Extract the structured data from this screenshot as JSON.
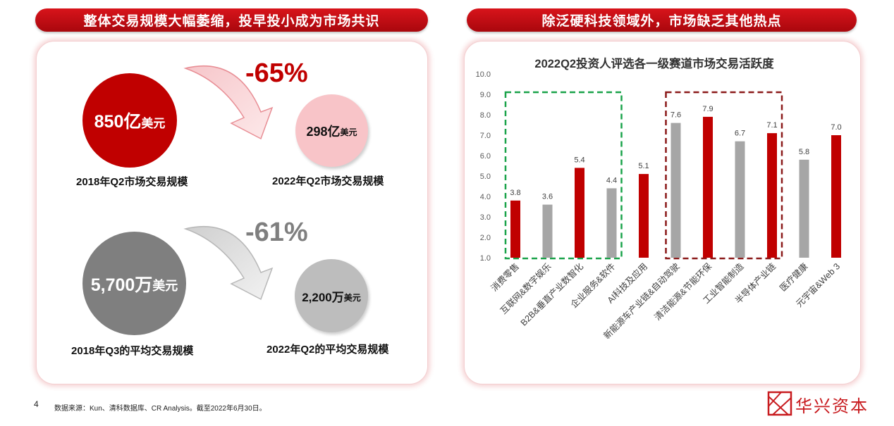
{
  "page_number": "4",
  "footer_source": "数据来源：Kun、清科数据库、CR Analysis。截至2022年6月30日。",
  "logo_text": "华兴资本",
  "colors": {
    "red": "#c00000",
    "grey": "#a6a6a6",
    "pink": "#f4b8bd",
    "dark_grey": "#7f7f7f",
    "light_grey": "#bfbfbf",
    "green_box": "#1aa34a",
    "red_box": "#8b1a1a"
  },
  "left_panel": {
    "banner": "整体交易规模大幅萎缩，投早投小成为市场共识",
    "top": {
      "change": "-65%",
      "big_value": "850亿",
      "big_unit": "美元",
      "big_caption": "2018年Q2市场交易规模",
      "small_value": "298亿",
      "small_unit": "美元",
      "small_caption": "2022年Q2市场交易规模"
    },
    "bottom": {
      "change": "-61%",
      "big_value": "5,700万",
      "big_unit": "美元",
      "big_caption": "2018年Q3的平均交易规模",
      "small_value": "2,200万",
      "small_unit": "美元",
      "small_caption": "2022年Q2的平均交易规模"
    }
  },
  "right_panel": {
    "banner": "除泛硬科技领域外，市场缺乏其他热点"
  },
  "chart_data": {
    "type": "bar",
    "title": "2022Q2投资人评选各一级赛道市场交易活跃度",
    "categories": [
      "消费零售",
      "互联网&数字娱乐",
      "B2B&垂直产业数智化",
      "企业服务&软件",
      "AI科技及应用",
      "新能源车产业链&自动驾驶",
      "清洁能源&节能环保",
      "工业智能制造",
      "半导体产业链",
      "医疗健康",
      "元宇宙&Web 3"
    ],
    "values": [
      3.8,
      3.6,
      5.4,
      4.4,
      5.1,
      7.6,
      7.9,
      6.7,
      7.1,
      5.8,
      7.0
    ],
    "value_labels": [
      "3.8",
      "3.6",
      "5.4",
      "4.4",
      "5.1",
      "7.6",
      "7.9",
      "6.7",
      "7.1",
      "5.8",
      "7.0"
    ],
    "bar_colors": [
      "#c00000",
      "#a6a6a6",
      "#c00000",
      "#a6a6a6",
      "#c00000",
      "#a6a6a6",
      "#c00000",
      "#a6a6a6",
      "#c00000",
      "#a6a6a6",
      "#c00000"
    ],
    "ylim": [
      1.0,
      10.0
    ],
    "yticks": [
      "1.0",
      "2.0",
      "3.0",
      "4.0",
      "5.0",
      "6.0",
      "7.0",
      "8.0",
      "9.0",
      "10.0"
    ],
    "grid": false,
    "highlight_groups": [
      {
        "color": "green",
        "style": "dashed",
        "categories": [
          "消费零售",
          "互联网&数字娱乐",
          "B2B&垂直产业数智化",
          "企业服务&软件"
        ]
      },
      {
        "color": "dark-red",
        "style": "dashed",
        "categories": [
          "新能源车产业链&自动驾驶",
          "清洁能源&节能环保",
          "工业智能制造",
          "半导体产业链"
        ]
      }
    ]
  }
}
